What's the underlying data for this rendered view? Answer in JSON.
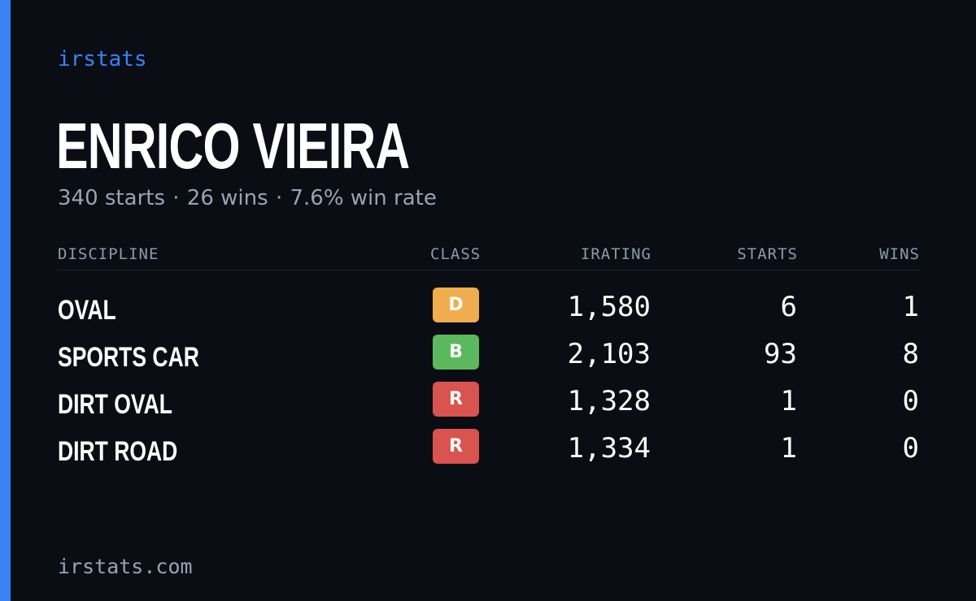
{
  "brand": "irstats",
  "driver": {
    "name": "ENRICO VIEIRA",
    "starts_text": "340 starts",
    "wins_text": "26 wins",
    "win_rate_text": "7.6% win rate",
    "separator": "·"
  },
  "table": {
    "headers": {
      "discipline": "DISCIPLINE",
      "class": "CLASS",
      "irating": "IRATING",
      "starts": "STARTS",
      "wins": "WINS"
    },
    "rows": [
      {
        "discipline": "OVAL",
        "class": "D",
        "class_color": "#f0ad4e",
        "irating": "1,580",
        "starts": "6",
        "wins": "1"
      },
      {
        "discipline": "SPORTS CAR",
        "class": "B",
        "class_color": "#5cb85c",
        "irating": "2,103",
        "starts": "93",
        "wins": "8"
      },
      {
        "discipline": "DIRT OVAL",
        "class": "R",
        "class_color": "#d9534f",
        "irating": "1,328",
        "starts": "1",
        "wins": "0"
      },
      {
        "discipline": "DIRT ROAD",
        "class": "R",
        "class_color": "#d9534f",
        "irating": "1,334",
        "starts": "1",
        "wins": "0"
      }
    ]
  },
  "footer": "irstats.com",
  "colors": {
    "background": "#0a0d14",
    "accent": "#3b82f6",
    "muted_text": "#9aa3b2"
  }
}
